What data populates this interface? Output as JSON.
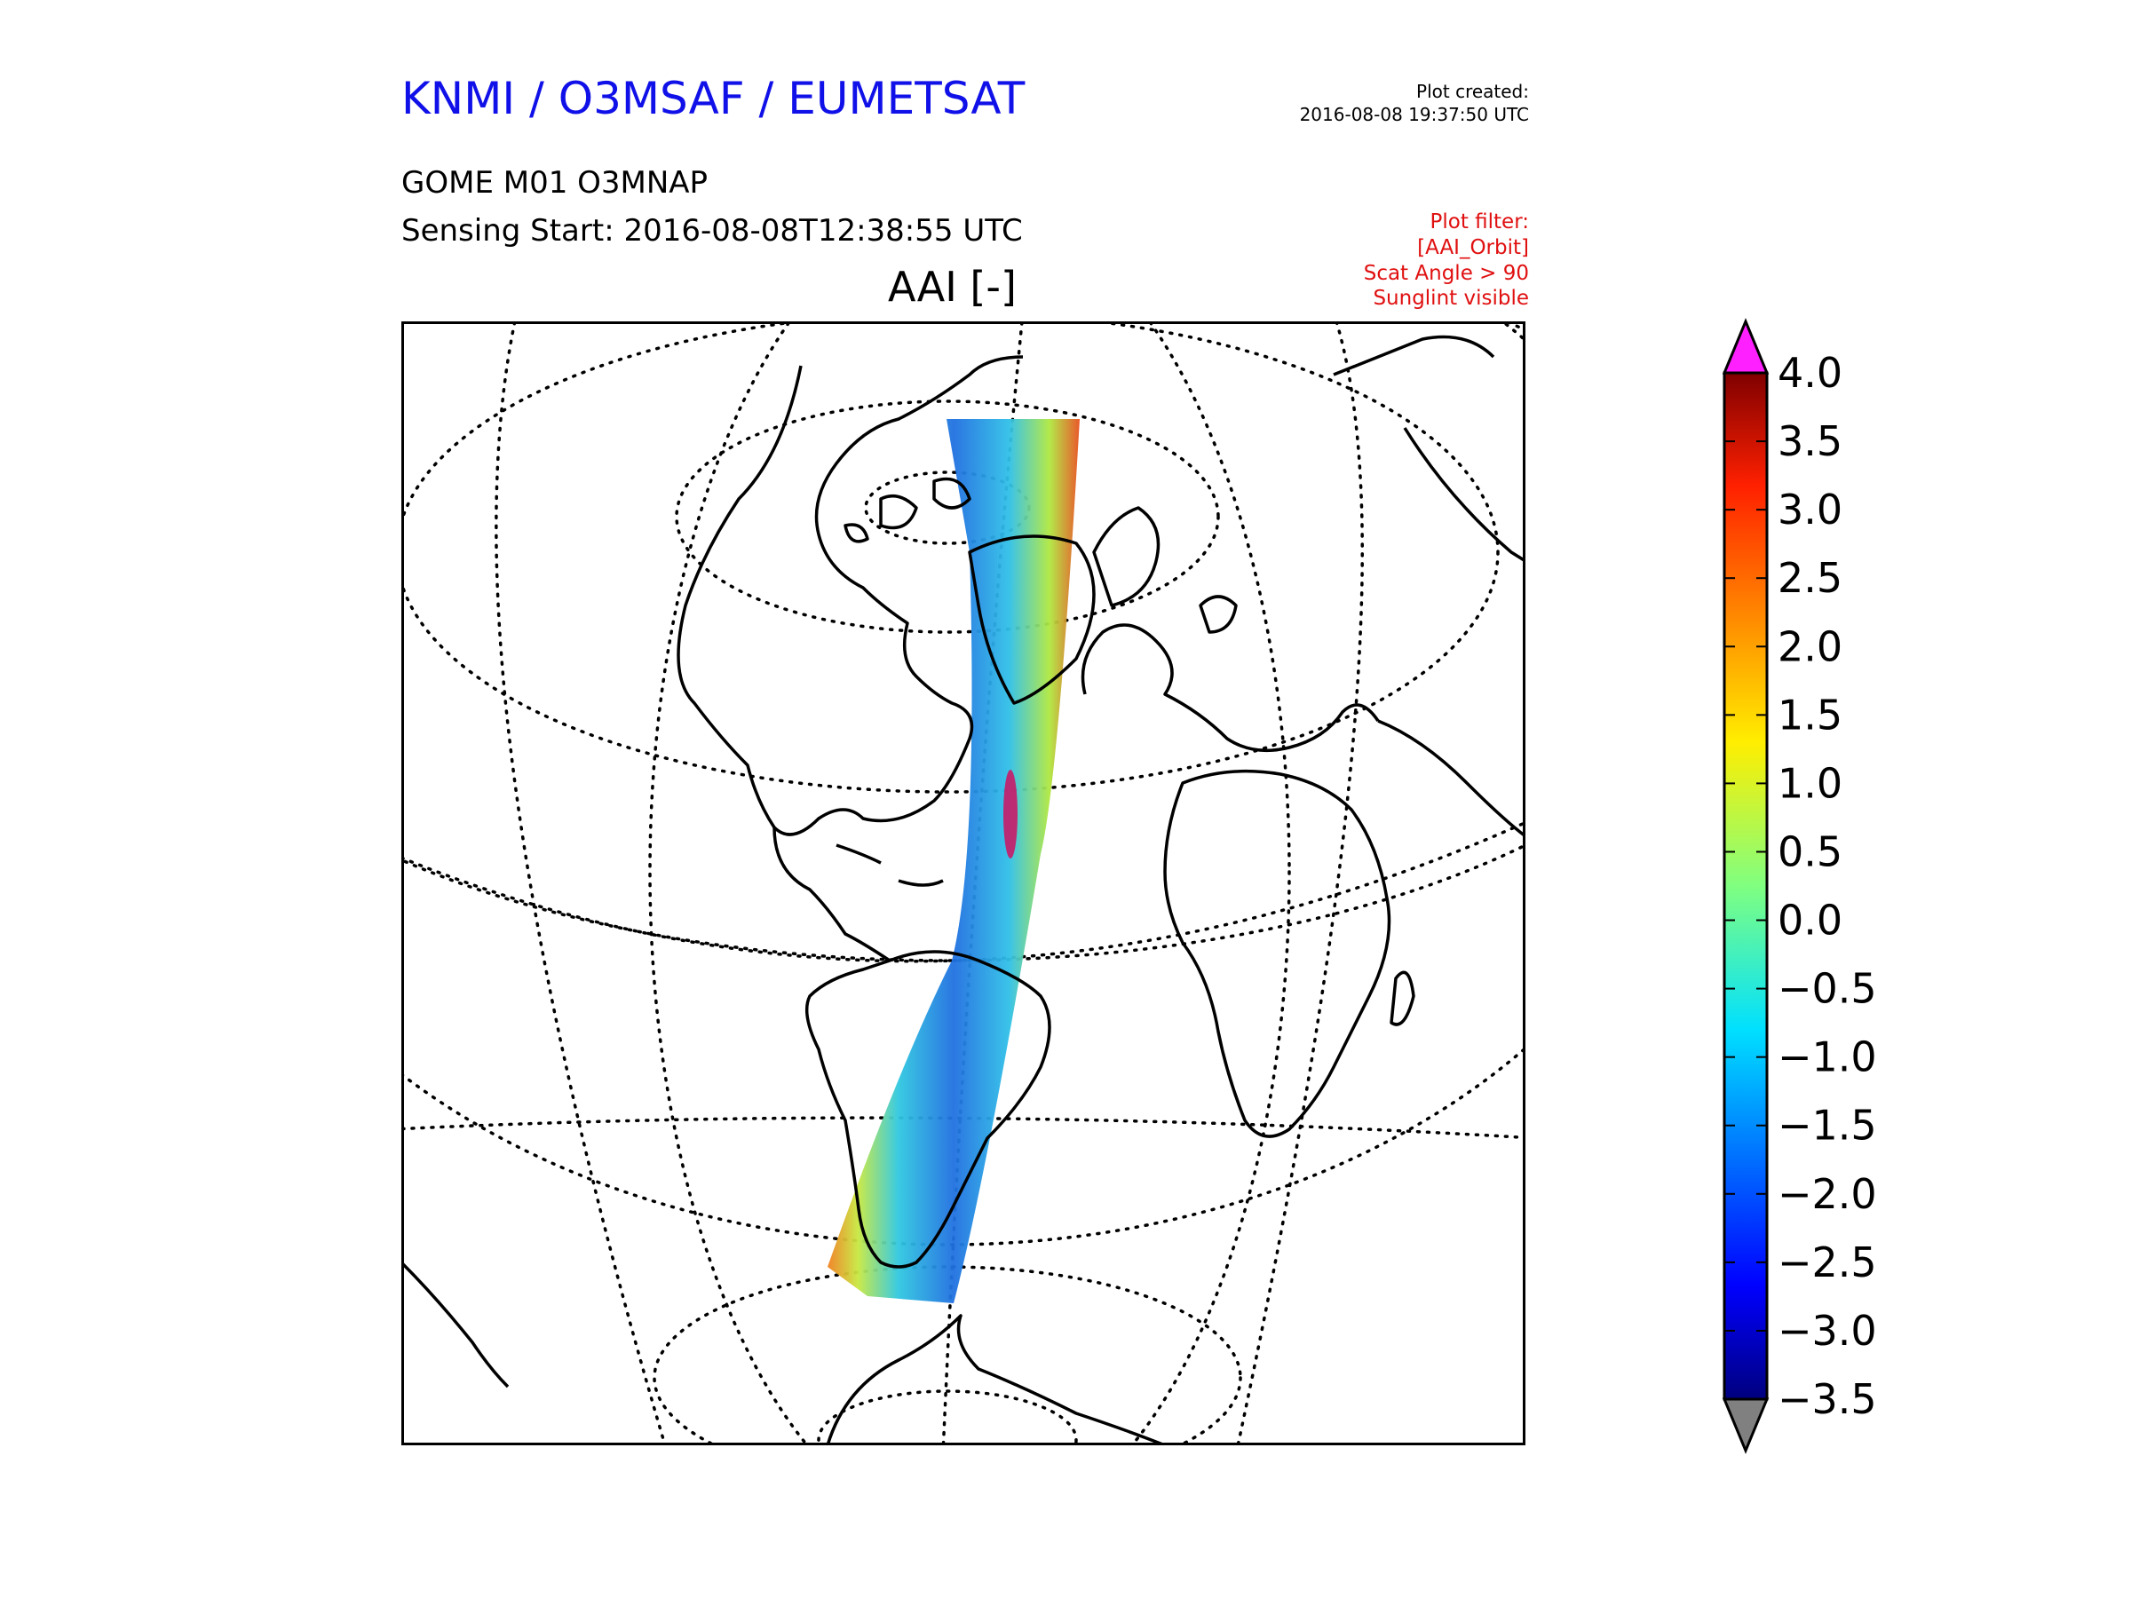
{
  "header": {
    "title": "KNMI / O3MSAF / EUMETSAT",
    "title_color": "#1010e8",
    "plot_created_label": "Plot created:",
    "plot_created_value": "2016-08-08 19:37:50 UTC"
  },
  "product": {
    "name": "GOME M01 O3MNAP",
    "sensing_start": "Sensing Start: 2016-08-08T12:38:55 UTC"
  },
  "filter": {
    "color": "#e01010",
    "lines": [
      "Plot filter:",
      "[AAI_Orbit]",
      "Scat Angle > 90",
      "Sunglint visible"
    ]
  },
  "map": {
    "title": "AAI [-]",
    "projection": "orthographic",
    "graticule": "dotted",
    "coastline_color": "#000000"
  },
  "colorbar": {
    "ticks": [
      "4.0",
      "3.5",
      "3.0",
      "2.5",
      "2.0",
      "1.5",
      "1.0",
      "0.5",
      "0.0",
      "−0.5",
      "−1.0",
      "−1.5",
      "−2.0",
      "−2.5",
      "−3.0",
      "−3.5"
    ],
    "min": -3.5,
    "max": 4.0,
    "colormap": "jet",
    "over_color": "#ff20ff",
    "under_color": "#808080"
  }
}
